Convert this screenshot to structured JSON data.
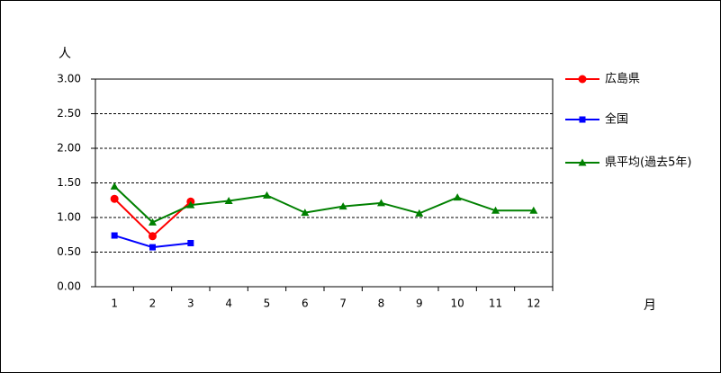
{
  "chart_data": {
    "type": "line",
    "y_label": "人",
    "x_label": "月",
    "categories": [
      "1",
      "2",
      "3",
      "4",
      "5",
      "6",
      "7",
      "8",
      "9",
      "10",
      "11",
      "12"
    ],
    "series": [
      {
        "name": "広島県",
        "color": "#ff0000",
        "marker": "circle",
        "values": [
          1.27,
          0.73,
          1.23,
          null,
          null,
          null,
          null,
          null,
          null,
          null,
          null,
          null
        ]
      },
      {
        "name": "全国",
        "color": "#0000ff",
        "marker": "square",
        "values": [
          0.74,
          0.57,
          0.63,
          null,
          null,
          null,
          null,
          null,
          null,
          null,
          null,
          null
        ]
      },
      {
        "name": "県平均(過去5年)",
        "color": "#008000",
        "marker": "triangle",
        "values": [
          1.45,
          0.93,
          1.18,
          1.24,
          1.32,
          1.07,
          1.16,
          1.21,
          1.06,
          1.29,
          1.1,
          1.1
        ]
      }
    ],
    "ylim": [
      0,
      3
    ],
    "yticks": [
      {
        "value": 0,
        "label": "0.00"
      },
      {
        "value": 0.5,
        "label": "0.50"
      },
      {
        "value": 1,
        "label": "1.00"
      },
      {
        "value": 1.5,
        "label": "1.50"
      },
      {
        "value": 2,
        "label": "2.00"
      },
      {
        "value": 2.5,
        "label": "2.50"
      },
      {
        "value": 3,
        "label": "3.00"
      }
    ],
    "grid": true
  }
}
